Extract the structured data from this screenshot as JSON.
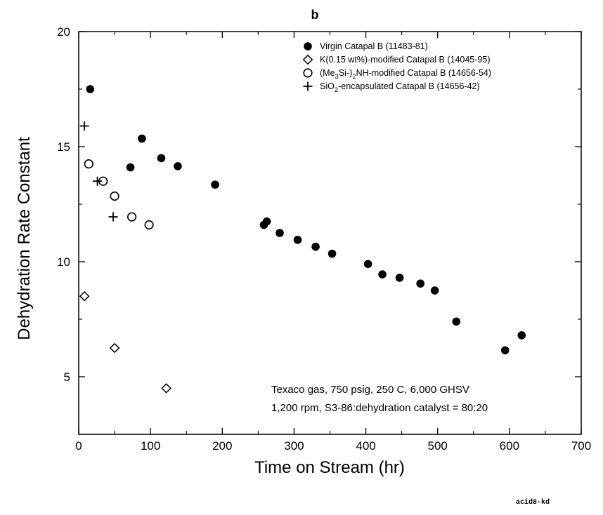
{
  "chart_data": {
    "type": "scatter",
    "panel_label": "b",
    "xlabel": "Time on Stream (hr)",
    "ylabel": "Dehydration Rate Constant",
    "xlim": [
      0,
      700
    ],
    "ylim": [
      2.5,
      20
    ],
    "x_ticks": [
      0,
      100,
      200,
      300,
      400,
      500,
      600,
      700
    ],
    "y_ticks": [
      5,
      10,
      15,
      20
    ],
    "grid": false,
    "legend_position": "top-right",
    "series": [
      {
        "name": "Virgin Catapal B (11483-81)",
        "marker": "filled-circle",
        "points": [
          [
            16,
            17.5
          ],
          [
            72,
            14.1
          ],
          [
            88,
            15.35
          ],
          [
            115,
            14.5
          ],
          [
            138,
            14.15
          ],
          [
            190,
            13.35
          ],
          [
            258,
            11.6
          ],
          [
            262,
            11.75
          ],
          [
            280,
            11.25
          ],
          [
            305,
            10.95
          ],
          [
            330,
            10.65
          ],
          [
            353,
            10.35
          ],
          [
            403,
            9.9
          ],
          [
            423,
            9.45
          ],
          [
            447,
            9.3
          ],
          [
            476,
            9.05
          ],
          [
            496,
            8.75
          ],
          [
            526,
            7.4
          ],
          [
            594,
            6.15
          ],
          [
            617,
            6.8
          ]
        ]
      },
      {
        "name": "K(0.15 wt%)-modified Catapal B (14045-95)",
        "marker": "open-diamond",
        "points": [
          [
            8,
            8.5
          ],
          [
            50,
            6.25
          ],
          [
            122,
            4.5
          ]
        ]
      },
      {
        "name": "(Me3Si-)2NH-modified Catapal B (14656-54)",
        "marker": "open-circle",
        "points": [
          [
            14,
            14.25
          ],
          [
            34,
            13.5
          ],
          [
            50,
            12.85
          ],
          [
            74,
            11.95
          ],
          [
            98,
            11.6
          ]
        ]
      },
      {
        "name": "SiO2-encapsulated Catapal B (14656-42)",
        "marker": "plus",
        "points": [
          [
            8,
            15.9
          ],
          [
            26,
            13.5
          ],
          [
            48,
            11.95
          ]
        ]
      }
    ],
    "annotations": [
      "Texaco gas, 750 psig, 250 C, 6,000 GHSV",
      "1,200 rpm, S3-86:dehydration catalyst = 80:20"
    ],
    "footer": "acid8-kd"
  },
  "legend_labels": [
    {
      "pre": "Virgin Catapal B (11483-81)",
      "sub": "",
      "post": ""
    },
    {
      "pre": "K(0.15 wt%)-modified Catapal B (14045-95)",
      "sub": "",
      "post": ""
    },
    {
      "pre": "(Me",
      "sub": "3",
      "mid": "Si-)",
      "sub2": "2",
      "post": "NH-modified Catapal B (14656-54)"
    },
    {
      "pre": "SiO",
      "sub": "2",
      "post": "-encapsulated Catapal B (14656-42)"
    }
  ]
}
